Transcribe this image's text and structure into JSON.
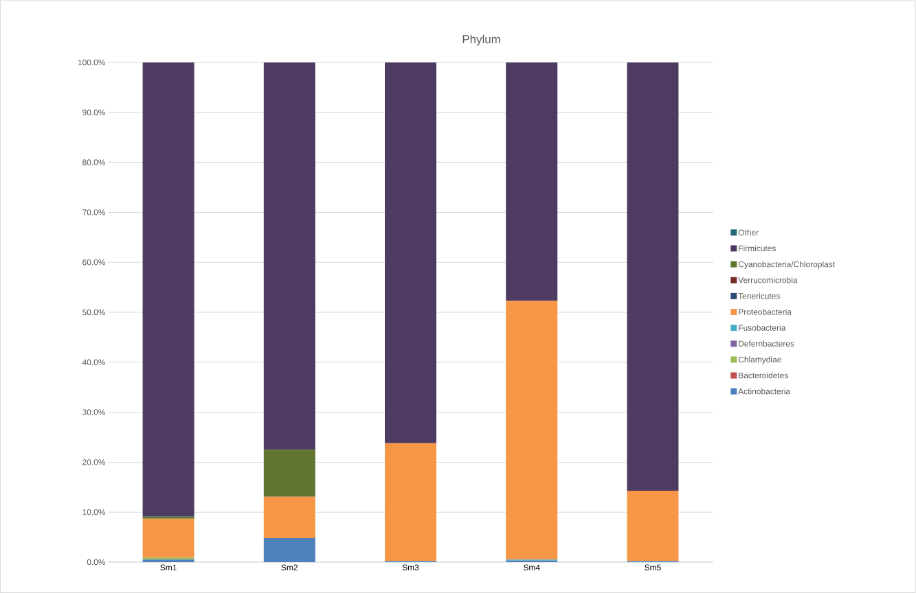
{
  "chart_data": {
    "type": "bar",
    "title": "Phylum",
    "stacked": true,
    "grid": "y",
    "legend": "right",
    "categories": [
      "Sm1",
      "Sm2",
      "Sm3",
      "Sm4",
      "Sm5"
    ],
    "ylim": [
      0,
      100
    ],
    "yticks": [
      {
        "value": 0,
        "label": "0.0%"
      },
      {
        "value": 10,
        "label": "10.0%"
      },
      {
        "value": 20,
        "label": "20.0%"
      },
      {
        "value": 30,
        "label": "30.0%"
      },
      {
        "value": 40,
        "label": "40.0%"
      },
      {
        "value": 50,
        "label": "50.0%"
      },
      {
        "value": 60,
        "label": "60.0%"
      },
      {
        "value": 70,
        "label": "70.0%"
      },
      {
        "value": 80,
        "label": "80.0%"
      },
      {
        "value": 90,
        "label": "90.0%"
      },
      {
        "value": 100,
        "label": "100.0%"
      }
    ],
    "series": [
      {
        "name": "Actinobacteria",
        "color": "#4f81bd",
        "values": [
          0.5,
          4.8,
          0.2,
          0.3,
          0.2
        ]
      },
      {
        "name": "Bacteroidetes",
        "color": "#c0504d",
        "values": [
          0,
          0,
          0,
          0,
          0
        ]
      },
      {
        "name": "Chlamydiae",
        "color": "#9bbb59",
        "values": [
          0.4,
          0,
          0,
          0,
          0
        ]
      },
      {
        "name": "Deferribacteres",
        "color": "#8064a2",
        "values": [
          0,
          0,
          0,
          0,
          0
        ]
      },
      {
        "name": "Fusobacteria",
        "color": "#4bacc6",
        "values": [
          0,
          0,
          0,
          0.2,
          0
        ]
      },
      {
        "name": "Proteobacteria",
        "color": "#f79646",
        "values": [
          7.8,
          8.3,
          23.6,
          51.8,
          14.1
        ]
      },
      {
        "name": "Tenericutes",
        "color": "#2c4d75",
        "values": [
          0,
          0,
          0,
          0,
          0
        ]
      },
      {
        "name": "Verrucomicrobia",
        "color": "#772c2a",
        "values": [
          0,
          0,
          0,
          0,
          0
        ]
      },
      {
        "name": "Cyanobacteria/Chloroplast",
        "color": "#5f7530",
        "values": [
          0.4,
          9.4,
          0,
          0,
          0
        ]
      },
      {
        "name": "Firmicutes",
        "color": "#4d3b62",
        "values": [
          90.9,
          77.5,
          76.2,
          47.7,
          85.7
        ]
      },
      {
        "name": "Other",
        "color": "#276a7c",
        "values": [
          0,
          0,
          0,
          0,
          0
        ]
      }
    ]
  }
}
